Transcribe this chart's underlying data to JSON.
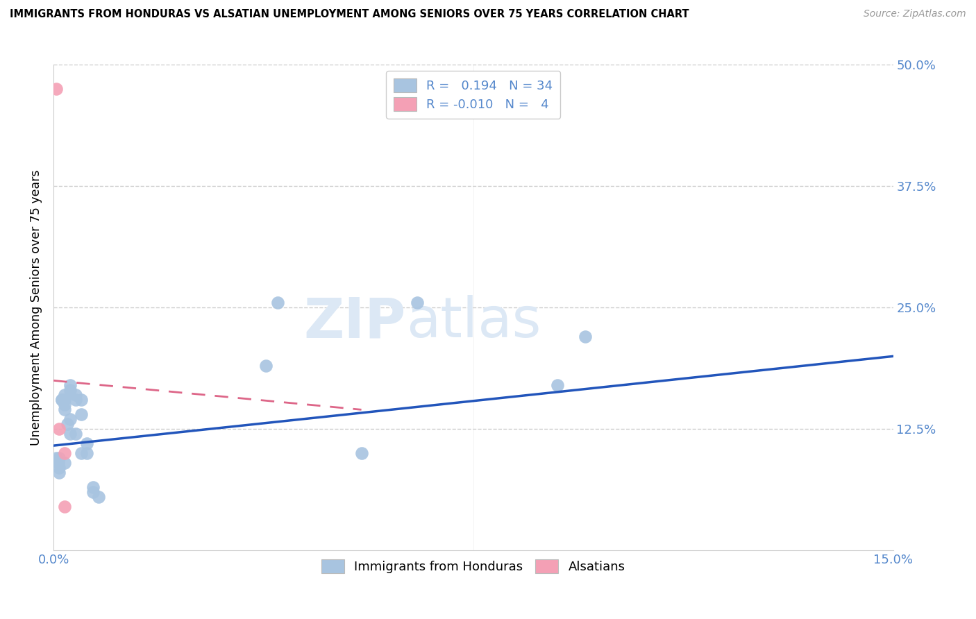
{
  "title": "IMMIGRANTS FROM HONDURAS VS ALSATIAN UNEMPLOYMENT AMONG SENIORS OVER 75 YEARS CORRELATION CHART",
  "source": "Source: ZipAtlas.com",
  "ylabel_label": "Unemployment Among Seniors over 75 years",
  "legend_blue_label": "Immigrants from Honduras",
  "legend_pink_label": "Alsatians",
  "legend_blue_R": "0.194",
  "legend_blue_N": "34",
  "legend_pink_R": "-0.010",
  "legend_pink_N": "4",
  "blue_color": "#a8c4e0",
  "pink_color": "#f4a0b5",
  "blue_line_color": "#2255bb",
  "pink_line_color": "#dd6688",
  "axis_color": "#5588cc",
  "grid_color": "#cccccc",
  "watermark_color": "#dce8f5",
  "xlim": [
    0.0,
    0.15
  ],
  "ylim": [
    0.0,
    0.5
  ],
  "blue_scatter_x": [
    0.0005,
    0.0008,
    0.001,
    0.001,
    0.001,
    0.0015,
    0.0015,
    0.002,
    0.002,
    0.002,
    0.002,
    0.002,
    0.0025,
    0.003,
    0.003,
    0.003,
    0.003,
    0.004,
    0.004,
    0.004,
    0.005,
    0.005,
    0.005,
    0.006,
    0.006,
    0.007,
    0.007,
    0.008,
    0.038,
    0.04,
    0.055,
    0.065,
    0.09,
    0.095
  ],
  "blue_scatter_y": [
    0.095,
    0.09,
    0.095,
    0.085,
    0.08,
    0.155,
    0.155,
    0.16,
    0.155,
    0.15,
    0.145,
    0.09,
    0.13,
    0.17,
    0.165,
    0.135,
    0.12,
    0.16,
    0.155,
    0.12,
    0.155,
    0.14,
    0.1,
    0.11,
    0.1,
    0.065,
    0.06,
    0.055,
    0.19,
    0.255,
    0.1,
    0.255,
    0.17,
    0.22
  ],
  "pink_scatter_x": [
    0.0005,
    0.001,
    0.002,
    0.002
  ],
  "pink_scatter_y": [
    0.475,
    0.125,
    0.1,
    0.045
  ],
  "blue_line_x": [
    0.0,
    0.15
  ],
  "blue_line_y": [
    0.108,
    0.2
  ],
  "pink_line_x": [
    0.0,
    0.055
  ],
  "pink_line_y": [
    0.175,
    0.145
  ]
}
